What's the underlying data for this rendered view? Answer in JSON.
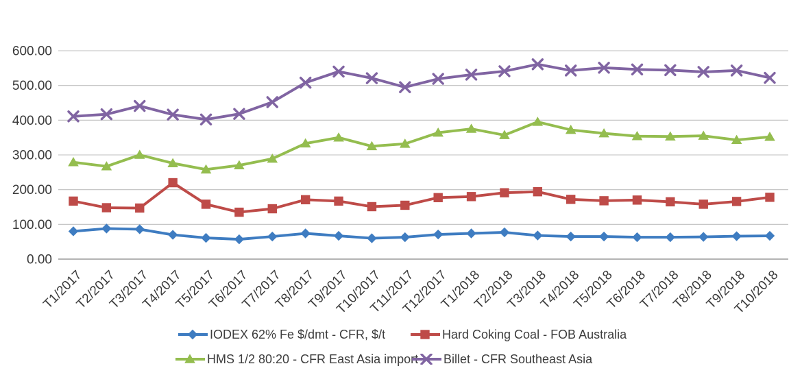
{
  "chart_data": {
    "type": "line",
    "title": "",
    "xlabel": "",
    "ylabel": "",
    "categories": [
      "T1/2017",
      "T2/2017",
      "T3/2017",
      "T4/2017",
      "T5/2017",
      "T6/2017",
      "T7/2017",
      "T8/2017",
      "T9/2017",
      "T10/2017",
      "T11/2017",
      "T12/2017",
      "T1/2018",
      "T2/2018",
      "T3/2018",
      "T4/2018",
      "T5/2018",
      "T6/2018",
      "T7/2018",
      "T8/2018",
      "T9/2018",
      "T10/2018"
    ],
    "series": [
      {
        "name": "IODEX 62% Fe $/dmt - CFR, $/t",
        "marker": "diamond",
        "color": "#3E7CC1",
        "values": [
          80,
          88,
          86,
          70,
          61,
          57,
          65,
          74,
          67,
          60,
          63,
          71,
          74,
          77,
          68,
          65,
          65,
          63,
          63,
          64,
          66,
          67
        ]
      },
      {
        "name": "Hard Coking Coal - FOB Australia",
        "marker": "square",
        "color": "#BE4B48",
        "values": [
          167,
          148,
          147,
          220,
          158,
          135,
          145,
          171,
          167,
          151,
          155,
          177,
          180,
          191,
          194,
          172,
          168,
          170,
          165,
          158,
          166,
          178
        ]
      },
      {
        "name": "HMS 1/2 80:20 - CFR East Asia import",
        "marker": "triangle",
        "color": "#94BD4F",
        "values": [
          279,
          267,
          300,
          276,
          258,
          270,
          289,
          333,
          350,
          325,
          332,
          364,
          375,
          357,
          395,
          372,
          362,
          354,
          353,
          355,
          343,
          352
        ]
      },
      {
        "name": "Billet - CFR Southeast Asia",
        "marker": "x",
        "color": "#8064A2",
        "values": [
          411,
          417,
          441,
          416,
          402,
          418,
          452,
          508,
          540,
          521,
          495,
          519,
          531,
          541,
          561,
          543,
          551,
          546,
          544,
          539,
          543,
          522
        ]
      }
    ],
    "ylim": [
      0,
      600
    ],
    "y_tick_step": 100,
    "y_tick_labels": [
      "0.00",
      "100.00",
      "200.00",
      "300.00",
      "400.00",
      "500.00",
      "600.00"
    ],
    "grid": "horizontal",
    "legend_position": "bottom"
  },
  "colors": {
    "gridline": "#BFBFBF",
    "axis_line": "#9A9A9A",
    "tick_text": "#3A3A3A",
    "background": "#FFFFFF"
  }
}
